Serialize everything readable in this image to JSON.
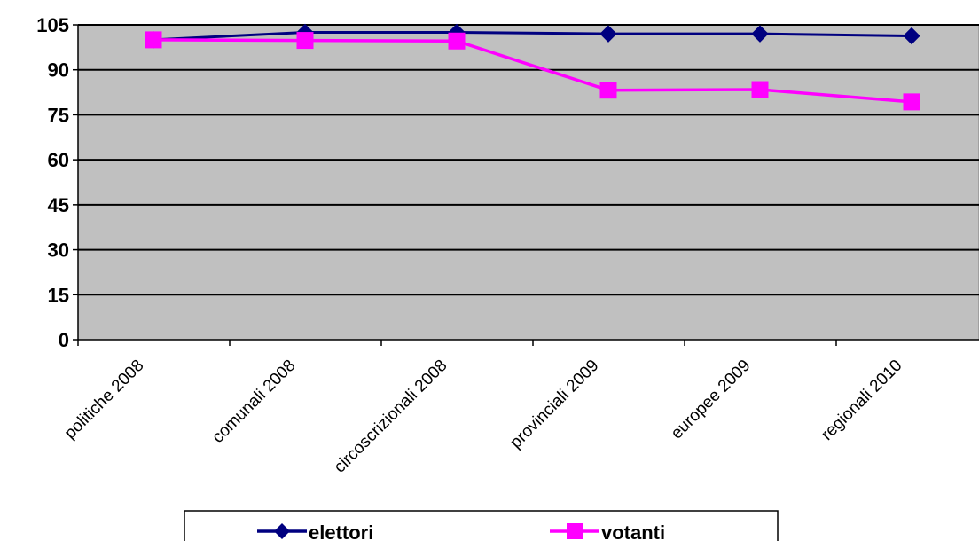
{
  "chart_data": {
    "type": "line",
    "title": "",
    "xlabel": "",
    "ylabel": "",
    "ylim": [
      0,
      105
    ],
    "yticks": [
      0,
      15,
      30,
      45,
      60,
      75,
      90,
      105
    ],
    "grid": true,
    "plot_background": "#C0C0C0",
    "legend_position": "bottom",
    "categories": [
      "politiche 2008",
      "comunali 2008",
      "circoscrizionali 2008",
      "provinciali 2009",
      "europee 2009",
      "regionali 2010"
    ],
    "series": [
      {
        "name": "elettori",
        "color": "#000080",
        "marker": "diamond",
        "values": [
          100,
          102.5,
          102.5,
          102,
          102,
          101.3
        ]
      },
      {
        "name": "votanti",
        "color": "#FF00FF",
        "marker": "square",
        "values": [
          100,
          99.8,
          99.6,
          83.2,
          83.4,
          79.3
        ]
      }
    ]
  }
}
